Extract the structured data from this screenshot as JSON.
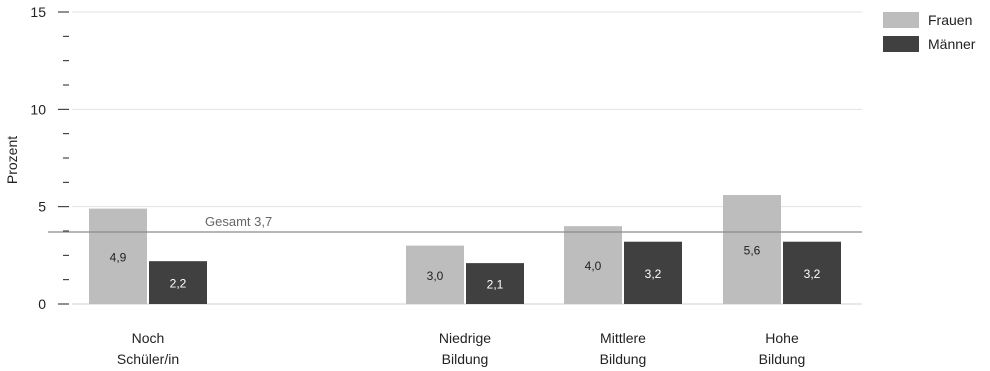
{
  "chart_data": {
    "type": "bar",
    "title": "",
    "xlabel": "",
    "ylabel": "Prozent",
    "ylim": [
      0,
      15
    ],
    "yticks_major": [
      0,
      5,
      10,
      15
    ],
    "yticks_minor_step": 1.25,
    "grid": true,
    "legend_position": "top-right",
    "categories": [
      [
        "Noch",
        "Schüler/in"
      ],
      [
        "",
        ""
      ],
      [
        "Niedrige",
        "Bildung"
      ],
      [
        "Mittlere",
        "Bildung"
      ],
      [
        "Hohe",
        "Bildung"
      ]
    ],
    "series": [
      {
        "name": "Frauen",
        "color": "#bdbdbd",
        "values": [
          4.9,
          null,
          3.0,
          4.0,
          5.6
        ],
        "labels": [
          "4,9",
          "",
          "3,0",
          "4,0",
          "5,6"
        ],
        "label_color": "#222222"
      },
      {
        "name": "Männer",
        "color": "#404040",
        "values": [
          2.2,
          null,
          2.1,
          3.2,
          3.2
        ],
        "labels": [
          "2,2",
          "",
          "2,1",
          "3,2",
          "3,2"
        ],
        "label_color": "#ffffff"
      }
    ],
    "reference_line": {
      "value": 3.7,
      "label": "Gesamt 3,7",
      "color": "#8a8a8a"
    }
  }
}
